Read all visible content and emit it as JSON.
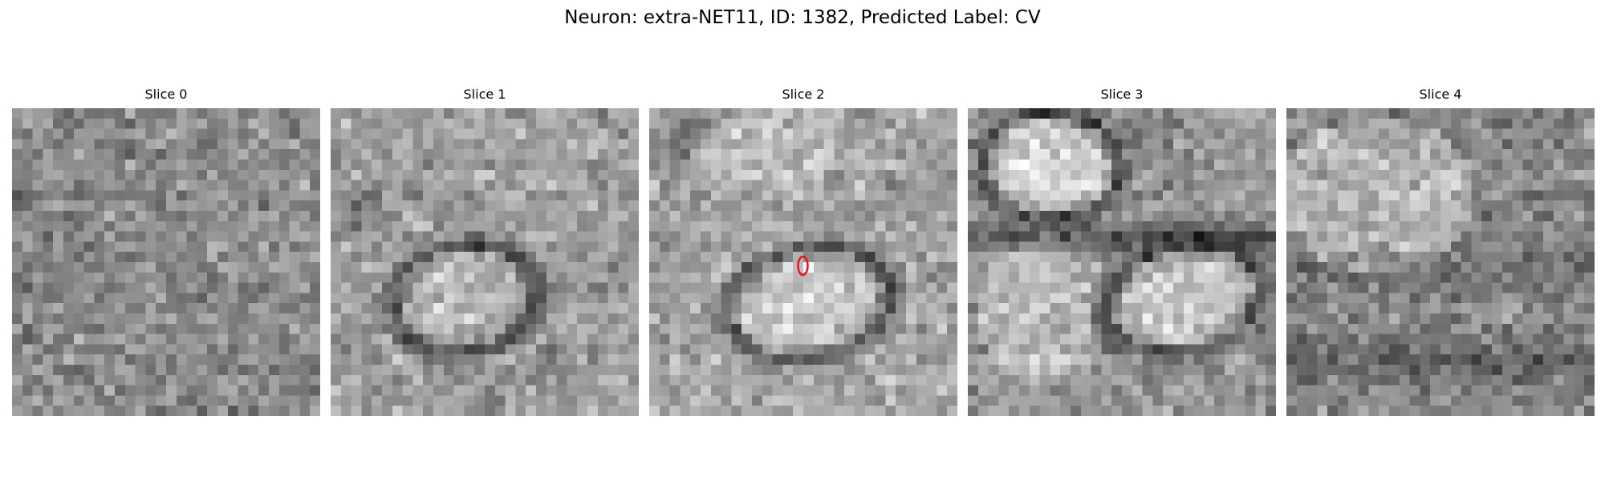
{
  "figure": {
    "title": "Neuron: extra-NET11, ID: 1382, Predicted Label: CV"
  },
  "slices": [
    {
      "label": "Slice 0",
      "image": "noisy grayscale EM slice, mostly mid-gray texture"
    },
    {
      "label": "Slice 1",
      "image": "grayscale EM slice with bright oval cell body outlined by dark membrane"
    },
    {
      "label": "Slice 2",
      "image": "grayscale EM slice with bright oval cell body and red marker"
    },
    {
      "label": "Slice 3",
      "image": "grayscale EM slice with bright regions separated by dark membranes"
    },
    {
      "label": "Slice 4",
      "image": "noisy grayscale EM slice with bright upper region"
    }
  ],
  "marker": {
    "color": "#e8141b",
    "on_slice": "Slice 2",
    "shape": "ellipse-outline"
  },
  "colors": {
    "background": "#ffffff",
    "text": "#000000"
  }
}
